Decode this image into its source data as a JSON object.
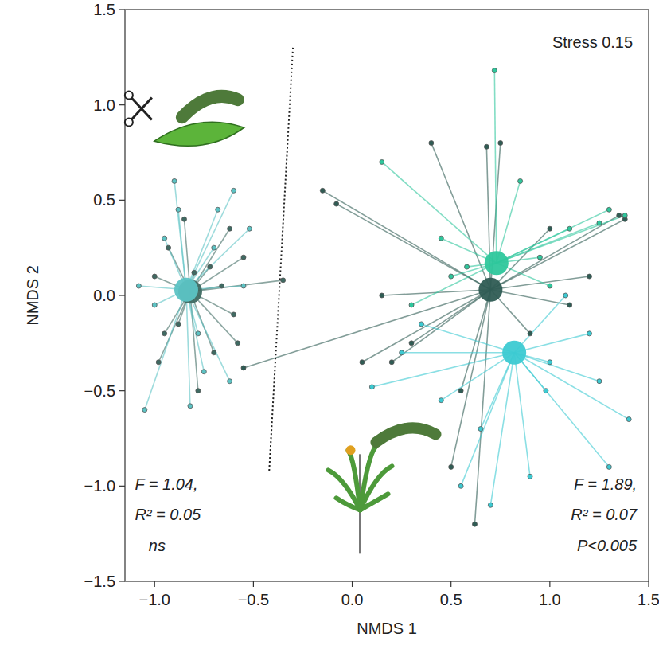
{
  "chart_data": {
    "type": "scatter",
    "x_label": "NMDS 1",
    "y_label": "NMDS 2",
    "xlim": [
      -1.15,
      1.5
    ],
    "ylim": [
      -1.5,
      1.5
    ],
    "xticks": [
      {
        "value": -1.0,
        "label": "−1.0"
      },
      {
        "value": -0.5,
        "label": "−0.5"
      },
      {
        "value": 0.0,
        "label": "0.0"
      },
      {
        "value": 0.5,
        "label": "0.5"
      },
      {
        "value": 1.0,
        "label": "1.0"
      },
      {
        "value": 1.5,
        "label": "1.5"
      }
    ],
    "yticks": [
      {
        "value": -1.5,
        "label": "−1.5"
      },
      {
        "value": -1.0,
        "label": "−1.0"
      },
      {
        "value": -0.5,
        "label": "−0.5"
      },
      {
        "value": 0.0,
        "label": "0.0"
      },
      {
        "value": 0.5,
        "label": "0.5"
      },
      {
        "value": 1.0,
        "label": "1.0"
      },
      {
        "value": 1.5,
        "label": "1.5"
      }
    ],
    "grid": false,
    "divider": {
      "x": [
        -0.3,
        -0.42
      ],
      "y": [
        1.3,
        -0.92
      ],
      "line_style": "dotted"
    },
    "annotations": [
      {
        "text": "Stress 0.15",
        "x": 1.42,
        "y": 1.3
      },
      {
        "text": "F = 1.04,",
        "x": -1.1,
        "y": -1.02
      },
      {
        "text": "R² = 0.05",
        "x": -1.1,
        "y": -1.18
      },
      {
        "text": "ns",
        "x": -1.03,
        "y": -1.34
      },
      {
        "text": "F = 1.89,",
        "x": 1.44,
        "y": -1.02
      },
      {
        "text": "R² = 0.07",
        "x": 1.44,
        "y": -1.18
      },
      {
        "text": "P<0.005",
        "x": 1.44,
        "y": -1.34
      }
    ],
    "series": [
      {
        "color": "#3f6a62",
        "centroid_x": -0.82,
        "centroid_y": 0.02,
        "x": [
          -0.62,
          -0.55,
          -0.7,
          -0.95,
          -1.0,
          -0.85,
          -0.78,
          -0.6,
          -0.98,
          -0.72,
          -0.88,
          -0.66,
          -0.93,
          -0.58,
          -0.8,
          -0.35
        ],
        "values": [
          0.35,
          0.2,
          -0.3,
          -0.2,
          0.1,
          0.4,
          -0.5,
          -0.1,
          -0.35,
          0.15,
          -0.15,
          0.05,
          0.25,
          -0.25,
          0.12,
          0.08
        ]
      },
      {
        "color": "#5cc3c4",
        "centroid_x": -0.84,
        "centroid_y": 0.03,
        "x": [
          -0.9,
          -0.6,
          -0.68,
          -1.05,
          -0.95,
          -0.75,
          -0.52,
          -0.82,
          -1.0,
          -0.7,
          -0.62,
          -0.88,
          -1.08,
          -0.55,
          -0.78
        ],
        "values": [
          0.6,
          0.55,
          0.45,
          -0.6,
          0.3,
          -0.4,
          0.35,
          -0.58,
          -0.05,
          0.25,
          -0.45,
          0.45,
          0.05,
          0.05,
          -0.2
        ]
      },
      {
        "color": "#2f5c54",
        "centroid_x": 0.7,
        "centroid_y": 0.03,
        "x": [
          -0.15,
          -0.08,
          0.15,
          0.3,
          0.55,
          0.62,
          1.0,
          1.2,
          1.35,
          1.38,
          0.9,
          0.4,
          0.2,
          0.75,
          1.1,
          0.5,
          -0.55,
          0.05,
          0.68
        ],
        "values": [
          0.55,
          0.48,
          0.0,
          -0.25,
          -0.5,
          -1.2,
          0.35,
          0.1,
          0.42,
          0.4,
          -0.2,
          0.8,
          -0.35,
          0.8,
          -0.05,
          -0.9,
          -0.38,
          -0.35,
          0.78
        ]
      },
      {
        "color": "#2ec79c",
        "centroid_x": 0.73,
        "centroid_y": 0.17,
        "x": [
          0.15,
          0.45,
          0.72,
          1.3,
          1.38,
          1.1,
          0.95,
          0.5,
          0.3,
          1.25,
          0.85,
          0.58,
          1.0
        ],
        "values": [
          0.7,
          0.3,
          1.18,
          0.45,
          0.42,
          0.35,
          0.2,
          0.1,
          -0.05,
          0.38,
          0.6,
          0.15,
          0.05
        ]
      },
      {
        "color": "#3ccad2",
        "centroid_x": 0.82,
        "centroid_y": -0.3,
        "x": [
          0.25,
          0.45,
          0.55,
          1.3,
          1.4,
          1.08,
          1.2,
          0.65,
          0.9,
          0.98,
          0.35,
          0.7,
          1.25,
          0.1,
          1.0
        ],
        "values": [
          -0.3,
          -0.55,
          -1.0,
          -0.9,
          -0.65,
          0.0,
          -0.2,
          -0.7,
          -0.95,
          -0.5,
          -0.15,
          -1.1,
          -0.45,
          -0.48,
          -0.35
        ]
      }
    ]
  }
}
